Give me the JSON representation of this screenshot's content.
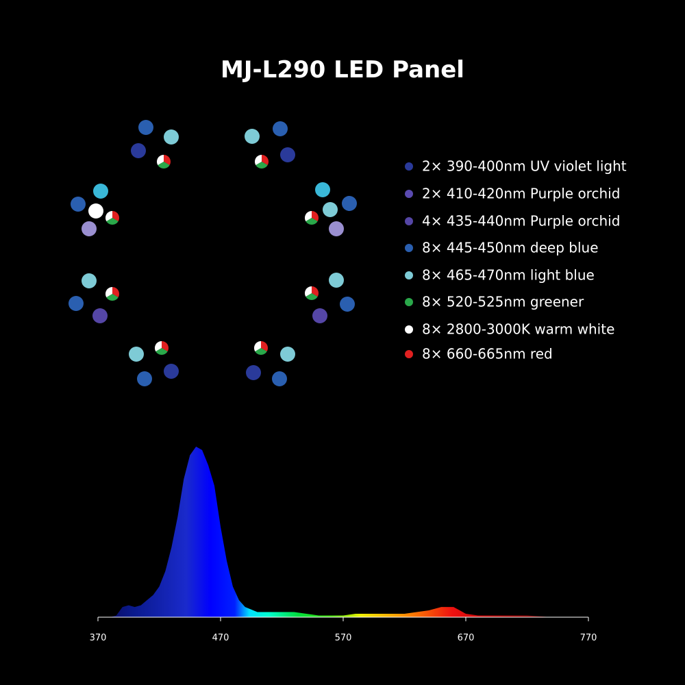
{
  "title": "MJ-L290 LED Panel",
  "legend": [
    {
      "label": "2× 390-400nm UV violet light",
      "color": "#2a3a9a"
    },
    {
      "label": "2× 410-420nm Purple orchid",
      "color": "#5a4ab0"
    },
    {
      "label": "4× 435-440nm Purple orchid",
      "color": "#5546a6"
    },
    {
      "label": "8× 445-450nm deep blue",
      "color": "#2a5fb0"
    },
    {
      "label": "8× 465-470nm light blue",
      "color": "#7ecbd6"
    },
    {
      "label": "8× 520-525nm greener",
      "color": "#2aa84a"
    },
    {
      "label": "8× 2800-3000K warm white",
      "color": "#ffffff"
    },
    {
      "label": "8× 660-665nm red",
      "color": "#e02020"
    }
  ],
  "chart_data": {
    "type": "area",
    "x": [
      375,
      380,
      385,
      390,
      395,
      400,
      405,
      410,
      415,
      420,
      425,
      430,
      435,
      440,
      445,
      450,
      455,
      460,
      465,
      470,
      475,
      480,
      485,
      490,
      500,
      510,
      520,
      530,
      540,
      550,
      560,
      570,
      580,
      590,
      600,
      610,
      620,
      630,
      640,
      650,
      655,
      660,
      665,
      670,
      680,
      700,
      720,
      740,
      760,
      770
    ],
    "values": [
      0,
      0,
      1,
      6,
      7,
      6,
      7,
      10,
      13,
      18,
      27,
      41,
      59,
      81,
      95,
      100,
      98,
      89,
      77,
      53,
      33,
      18,
      10,
      6,
      3,
      3,
      3,
      3,
      2,
      1,
      1,
      1,
      2,
      2,
      2,
      2,
      2,
      3,
      4,
      6,
      6,
      6,
      4,
      2,
      1,
      1,
      1,
      0,
      0,
      0
    ],
    "xlim": [
      370,
      770
    ],
    "ylim": [
      0,
      100
    ],
    "xticks": [
      370,
      470,
      570,
      670,
      770
    ]
  }
}
